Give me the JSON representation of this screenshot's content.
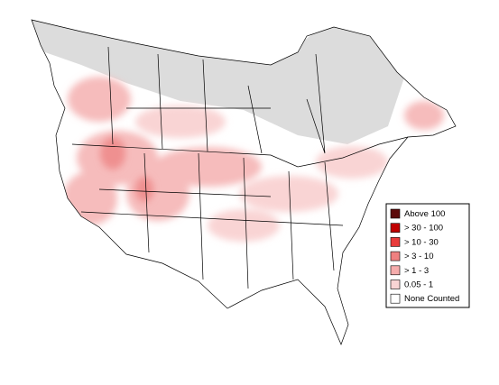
{
  "legend": {
    "items": [
      {
        "label": "Above 100",
        "color": "#5c0a0a"
      },
      {
        "label": "> 30 - 100",
        "color": "#c00000"
      },
      {
        "label": "> 10 - 30",
        "color": "#e83a3a"
      },
      {
        "label": "> 3 - 10",
        "color": "#f08080"
      },
      {
        "label": "> 1 - 3",
        "color": "#f5acac"
      },
      {
        "label": "0.05 - 1",
        "color": "#f9d4d4"
      },
      {
        "label": "None Counted",
        "color": "#ffffff"
      }
    ]
  }
}
